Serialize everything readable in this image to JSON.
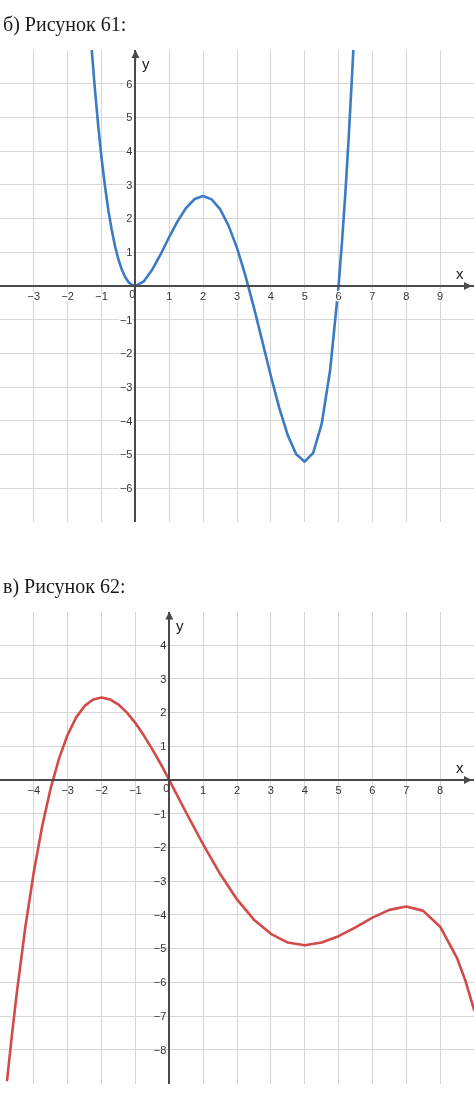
{
  "chart_data": [
    {
      "type": "line",
      "title": "б) Рисунок 61:",
      "xlabel": "x",
      "ylabel": "y",
      "series": [
        {
          "color": "#3b7bc4",
          "x": [
            -1.289,
            -1.2,
            -1.1,
            -1.0,
            -0.9,
            -0.8,
            -0.7,
            -0.6,
            -0.5,
            -0.4,
            -0.3,
            -0.2,
            -0.1,
            0,
            0.25,
            0.5,
            0.75,
            1,
            1.25,
            1.5,
            1.75,
            2,
            2.25,
            2.5,
            2.75,
            3,
            3.25,
            3.5,
            3.75,
            4,
            4.25,
            4.5,
            4.75,
            5,
            5.25,
            5.5,
            5.75,
            6,
            6.1,
            6.2,
            6.3,
            6.4,
            6.435
          ],
          "values": [
            6.99,
            5.88,
            4.76,
            3.79,
            2.96,
            2.25,
            1.66,
            1.17,
            0.78,
            0.48,
            0.26,
            0.11,
            0.03,
            0,
            0.14,
            0.49,
            0.95,
            1.46,
            1.93,
            2.32,
            2.58,
            2.67,
            2.57,
            2.28,
            1.79,
            1.13,
            0.3,
            -0.64,
            -1.65,
            -2.67,
            -3.62,
            -4.43,
            -4.99,
            -5.21,
            -4.95,
            -4.1,
            -2.5,
            0,
            1.29,
            2.75,
            4.42,
            6.28,
            6.98
          ]
        }
      ],
      "xlim": [
        -4,
        10
      ],
      "ylim": [
        -7,
        7
      ],
      "xticks": [
        {
          "value": -3,
          "label": "−3"
        },
        {
          "value": -2,
          "label": "−2"
        },
        {
          "value": -1,
          "label": "−1"
        },
        0,
        1,
        2,
        3,
        4,
        5,
        6,
        7,
        8,
        9
      ],
      "yticks": [
        {
          "value": -6,
          "label": "−6"
        },
        {
          "value": -5,
          "label": "−5"
        },
        {
          "value": -4,
          "label": "−4"
        },
        {
          "value": -3,
          "label": "−3"
        },
        {
          "value": -2,
          "label": "−2"
        },
        {
          "value": -1,
          "label": "−1"
        },
        1,
        2,
        3,
        4,
        5,
        6
      ],
      "grid": true
    },
    {
      "type": "line",
      "title": "в) Рисунок 62:",
      "xlabel": "x",
      "ylabel": "y",
      "series": [
        {
          "color": "#d24a4a",
          "x": [
            -4.79,
            -4.65,
            -4.5,
            -4.25,
            -4,
            -3.75,
            -3.5,
            -3.25,
            -3,
            -2.75,
            -2.5,
            -2.25,
            -2,
            -1.75,
            -1.5,
            -1.25,
            -1,
            -0.75,
            -0.5,
            -0.25,
            0,
            0.5,
            1,
            1.5,
            2,
            2.5,
            3,
            3.5,
            4,
            4.5,
            5,
            5.5,
            6,
            6.5,
            7,
            7.5,
            8,
            8.5,
            8.75,
            9
          ],
          "values": [
            -8.9,
            -7.58,
            -6.28,
            -4.35,
            -2.72,
            -1.35,
            -0.23,
            0.66,
            1.35,
            1.86,
            2.2,
            2.39,
            2.45,
            2.39,
            2.24,
            2.0,
            1.69,
            1.32,
            0.91,
            0.47,
            0,
            -0.97,
            -1.91,
            -2.78,
            -3.54,
            -4.14,
            -4.56,
            -4.82,
            -4.9,
            -4.82,
            -4.63,
            -4.37,
            -4.08,
            -3.85,
            -3.75,
            -3.88,
            -4.35,
            -5.28,
            -5.96,
            -6.81
          ]
        }
      ],
      "xlim": [
        -5,
        9
      ],
      "ylim": [
        -9,
        5
      ],
      "xticks": [
        {
          "value": -4,
          "label": "−4"
        },
        {
          "value": -3,
          "label": "−3"
        },
        {
          "value": -2,
          "label": "−2"
        },
        {
          "value": -1,
          "label": "−1"
        },
        0,
        1,
        2,
        3,
        4,
        5,
        6,
        7,
        8
      ],
      "yticks": [
        {
          "value": -8,
          "label": "−8"
        },
        {
          "value": -7,
          "label": "−7"
        },
        {
          "value": -6,
          "label": "−6"
        },
        {
          "value": -5,
          "label": "−5"
        },
        {
          "value": -4,
          "label": "−4"
        },
        {
          "value": -3,
          "label": "−3"
        },
        {
          "value": -2,
          "label": "−2"
        },
        {
          "value": -1,
          "label": "−1"
        },
        1,
        2,
        3,
        4
      ],
      "grid": true
    }
  ]
}
